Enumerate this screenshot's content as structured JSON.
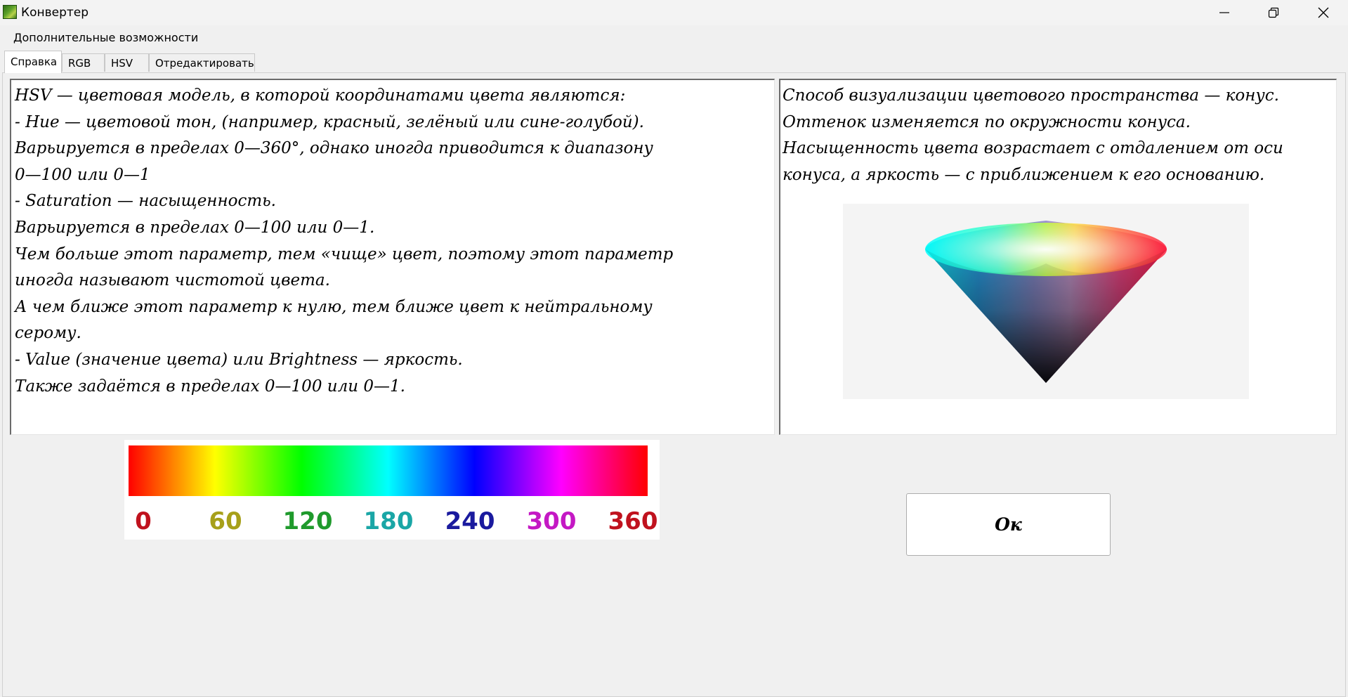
{
  "window": {
    "title": "Конвертер",
    "icons": {
      "app": "app-icon",
      "minimize": "minimize-icon",
      "restore": "restore-icon",
      "close": "close-icon"
    }
  },
  "menu": {
    "items": [
      {
        "label": "Дополнительные возможности"
      }
    ]
  },
  "tabs": [
    {
      "label": "Справка",
      "active": true
    },
    {
      "label": "RGB",
      "active": false
    },
    {
      "label": "HSV",
      "active": false
    },
    {
      "label": "Отредактировать",
      "active": false
    }
  ],
  "left_panel": {
    "lines": [
      "HSV — цветовая модель, в которой координатами цвета являются:",
      "-  Hue — цветовой тон, (например, красный, зелёный или сине-голубой).",
      "Варьируется в пределах 0—360°, однако иногда приводится к диапазону",
      "0—100 или 0—1",
      "-  Saturation — насыщенность.",
      "Варьируется в пределах 0—100 или 0—1.",
      "Чем больше этот параметр, тем «чище» цвет, поэтому этот параметр",
      "иногда называют чистотой цвета.",
      "А чем ближе этот параметр к нулю, тем ближе цвет к нейтральному",
      "серому.",
      "-  Value (значение цвета) или Brightness — яркость.",
      "Также задаётся в пределах 0—100 или 0—1."
    ]
  },
  "right_panel": {
    "lines": [
      "Способ визуализации цветового пространства — конус.",
      "Оттенок изменяется по окружности конуса.",
      "Насыщенность цвета возрастает с отдалением от оси",
      "конуса, а яркость — с приближением к его основанию."
    ]
  },
  "hue_scale": {
    "labels": [
      {
        "text": "0",
        "color": "#c0121e"
      },
      {
        "text": "60",
        "color": "#a7a01a"
      },
      {
        "text": "120",
        "color": "#1f9a2c"
      },
      {
        "text": "180",
        "color": "#1aa6a6"
      },
      {
        "text": "240",
        "color": "#1a1a9e"
      },
      {
        "text": "300",
        "color": "#c418c4"
      },
      {
        "text": "360",
        "color": "#c0121e"
      }
    ]
  },
  "ok_button": {
    "label": "Ок"
  }
}
